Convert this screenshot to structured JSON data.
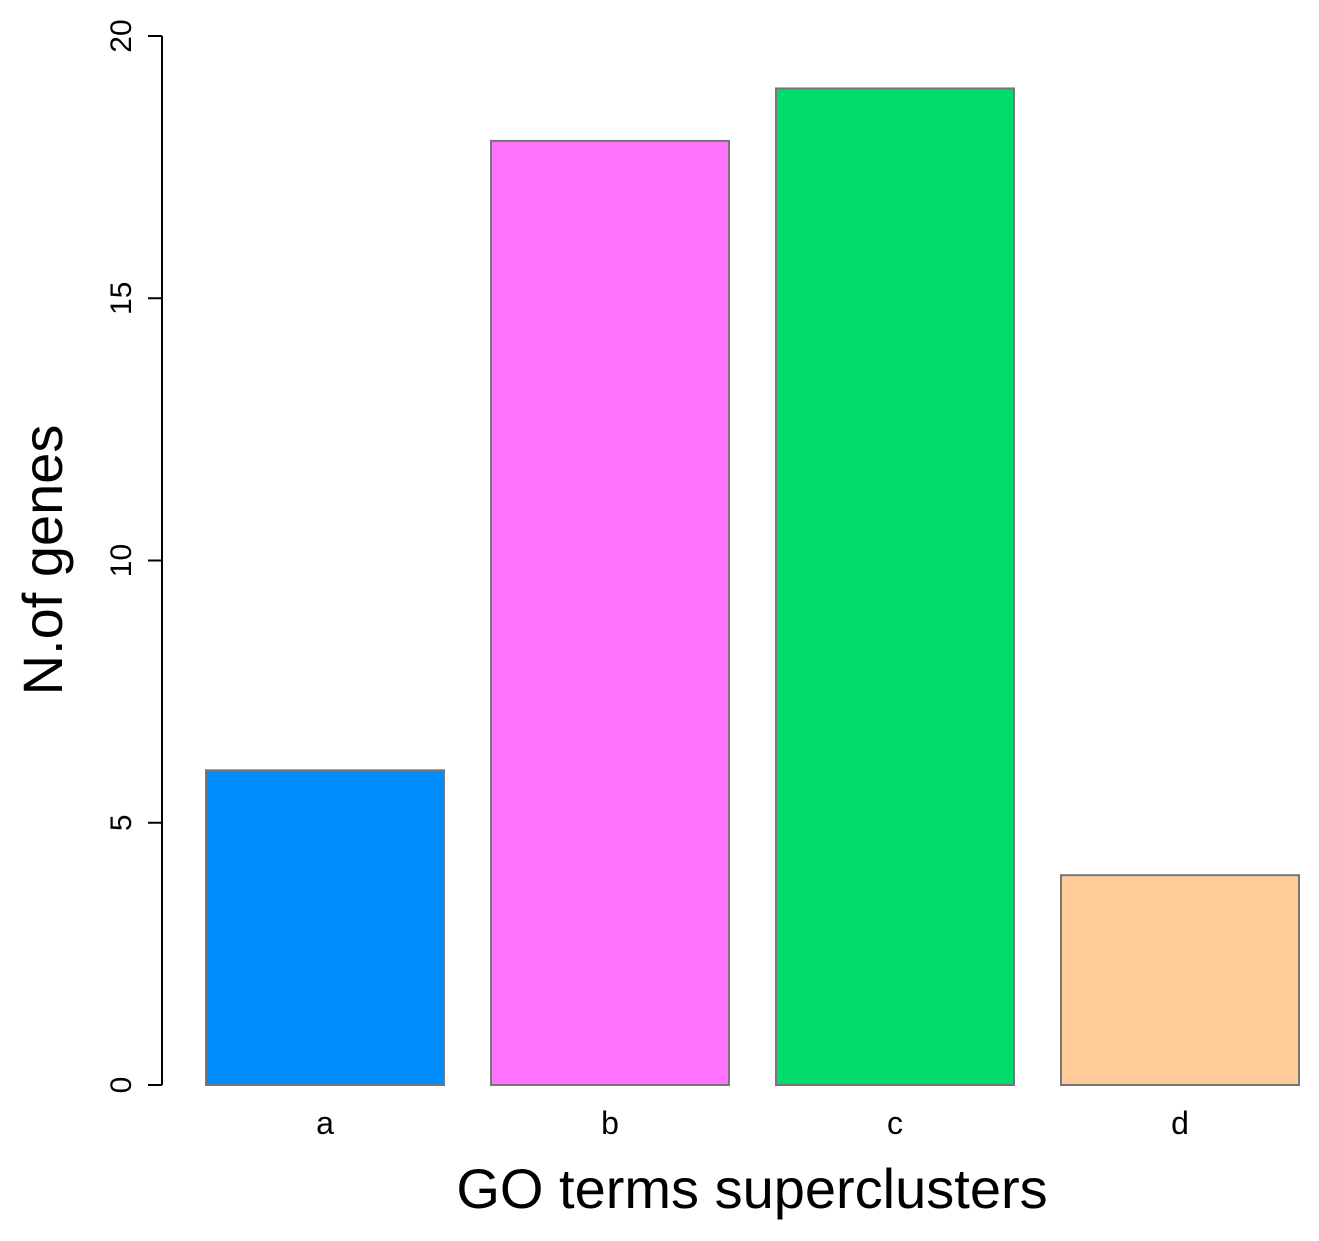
{
  "chart_data": {
    "type": "bar",
    "categories": [
      "a",
      "b",
      "c",
      "d"
    ],
    "values": [
      6,
      18,
      19,
      4
    ],
    "colors": [
      "#008cff",
      "#ff73ff",
      "#00dd6a",
      "#ffcc99"
    ],
    "xlabel": "GO terms superclusters",
    "ylabel": "N.of genes",
    "ylim": [
      0,
      20
    ],
    "yticks": [
      0,
      5,
      10,
      15,
      20
    ],
    "grid": false,
    "legend": "none"
  }
}
